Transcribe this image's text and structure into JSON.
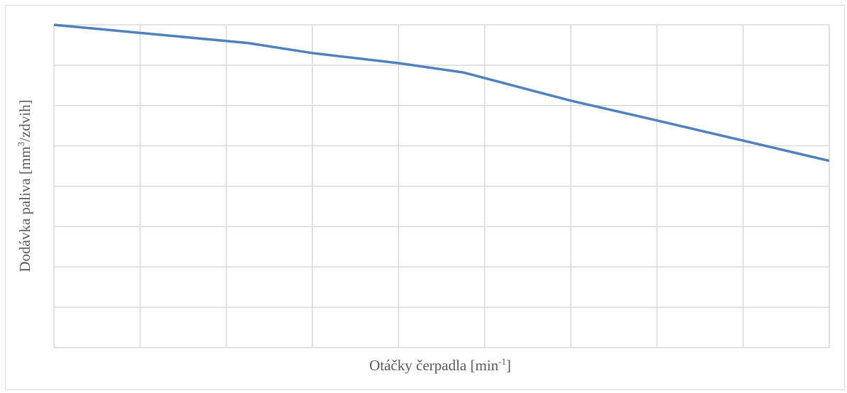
{
  "chart_data": {
    "type": "line",
    "x_label": [
      "Otáčky čerpadla [min",
      "-1",
      "]"
    ],
    "y_label": [
      "Dodávka paliva [mm",
      "3",
      "/zdvih]"
    ],
    "x": [
      0,
      1,
      2.25,
      3,
      4,
      4.75,
      6,
      7,
      8,
      9
    ],
    "series": [
      {
        "color": "#4f81bd",
        "values": [
          8,
          7.8,
          7.55,
          7.3,
          7.05,
          6.82,
          6.12,
          5.63,
          5.13,
          4.63
        ]
      }
    ],
    "xlim": [
      0,
      9
    ],
    "xticks": [
      0,
      1,
      2,
      3,
      4,
      5,
      6,
      7,
      8,
      9
    ],
    "ylim": [
      0,
      8
    ],
    "yticks": [
      0,
      1,
      2,
      3,
      4,
      5,
      6,
      7,
      8
    ],
    "grid": true
  }
}
